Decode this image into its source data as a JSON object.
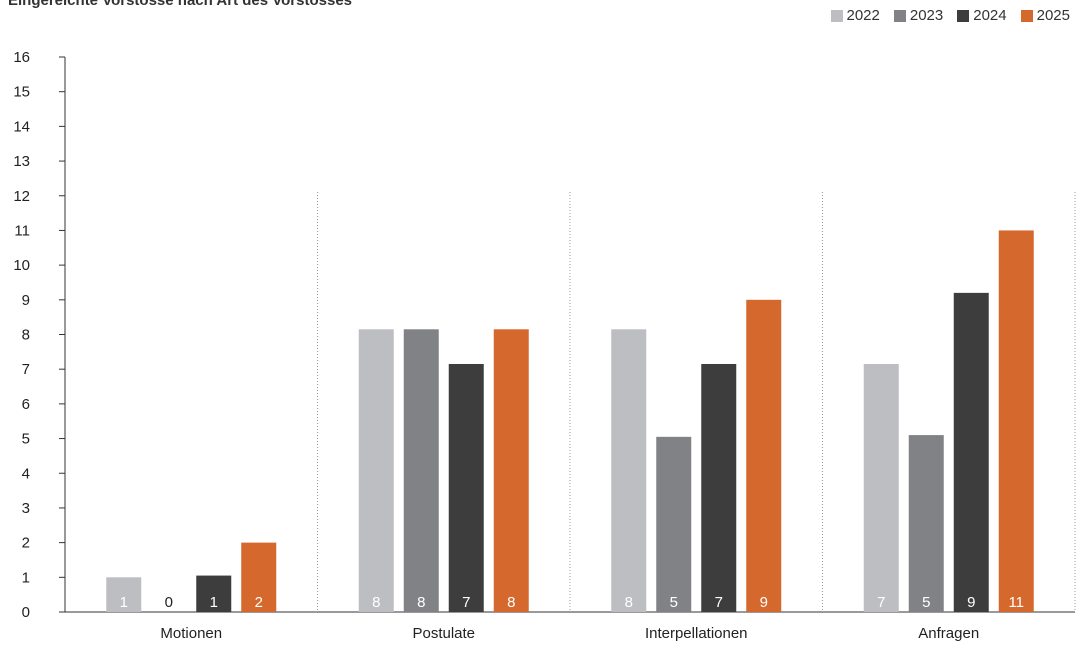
{
  "chart_data": {
    "type": "bar",
    "title": "Eingereichte Vorstösse nach Art des Vorstosses",
    "categories": [
      "Motionen",
      "Postulate",
      "Interpellationen",
      "Anfragen"
    ],
    "series": [
      {
        "name": "2022",
        "color": "#bdbec2",
        "values": [
          1,
          8,
          8,
          7
        ],
        "label_color": "#ffffff"
      },
      {
        "name": "2023",
        "color": "#818285",
        "values": [
          0,
          8,
          5,
          5
        ],
        "label_color": "#ffffff"
      },
      {
        "name": "2024",
        "color": "#3d3d3d",
        "values": [
          1,
          7,
          7,
          9
        ],
        "label_color": "#ffffff"
      },
      {
        "name": "2025",
        "color": "#d5692d",
        "values": [
          2,
          8,
          9,
          11
        ],
        "label_color": "#ffffff"
      }
    ],
    "bar_heights": [
      [
        1.0,
        8.15,
        8.15,
        7.15
      ],
      [
        0,
        8.15,
        5.05,
        5.1
      ],
      [
        1.05,
        7.15,
        7.15,
        9.2
      ],
      [
        2.0,
        8.15,
        9.0,
        11.0
      ]
    ],
    "yticks": [
      "0",
      "1",
      "2",
      "3",
      "4",
      "5",
      "6",
      "7",
      "8",
      "9",
      "10",
      "11",
      "12",
      "13",
      "14",
      "15",
      "16"
    ],
    "ylim": [
      0,
      16
    ],
    "xlabel": "",
    "ylabel": "",
    "legend_position": "top-right",
    "grid": false,
    "zero_label_color": "#222222"
  }
}
